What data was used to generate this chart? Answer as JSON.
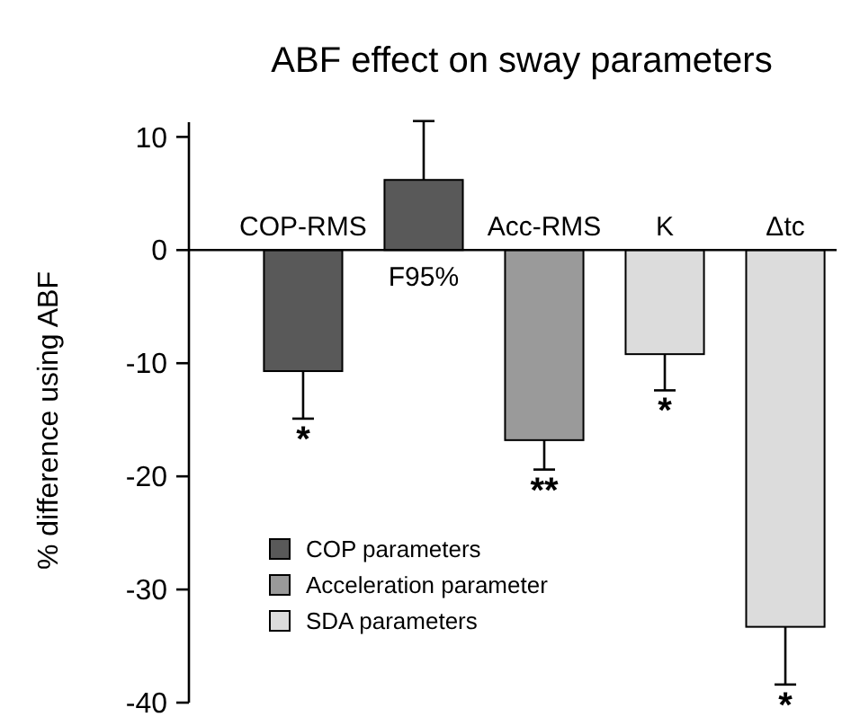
{
  "chart_data": {
    "type": "bar",
    "title": "ABF effect on sway parameters",
    "ylabel": "% difference using ABF",
    "categories": [
      "COP-RMS",
      "F95%",
      "Acc-RMS",
      "K",
      "Δtc"
    ],
    "series": [
      {
        "name": "COP parameters",
        "color": "#595959",
        "values": [
          -10.7,
          6.2,
          null,
          null,
          null
        ],
        "errors": [
          4.2,
          5.2,
          null,
          null,
          null
        ]
      },
      {
        "name": "Acceleration parameter",
        "color": "#9a9a9a",
        "values": [
          null,
          null,
          -16.8,
          null,
          null
        ],
        "errors": [
          null,
          null,
          2.6,
          null,
          null
        ]
      },
      {
        "name": "SDA parameters",
        "color": "#dcdcdc",
        "values": [
          null,
          null,
          null,
          -9.2,
          -33.3
        ],
        "errors": [
          null,
          null,
          null,
          3.2,
          5.1
        ]
      }
    ],
    "ylim": [
      -40,
      11.3
    ],
    "yticks": [
      -40,
      -30,
      -20,
      -10,
      0,
      10
    ],
    "grid": false,
    "legend": "bottom left",
    "annotations": [
      "*",
      "**",
      "*",
      "*"
    ]
  }
}
